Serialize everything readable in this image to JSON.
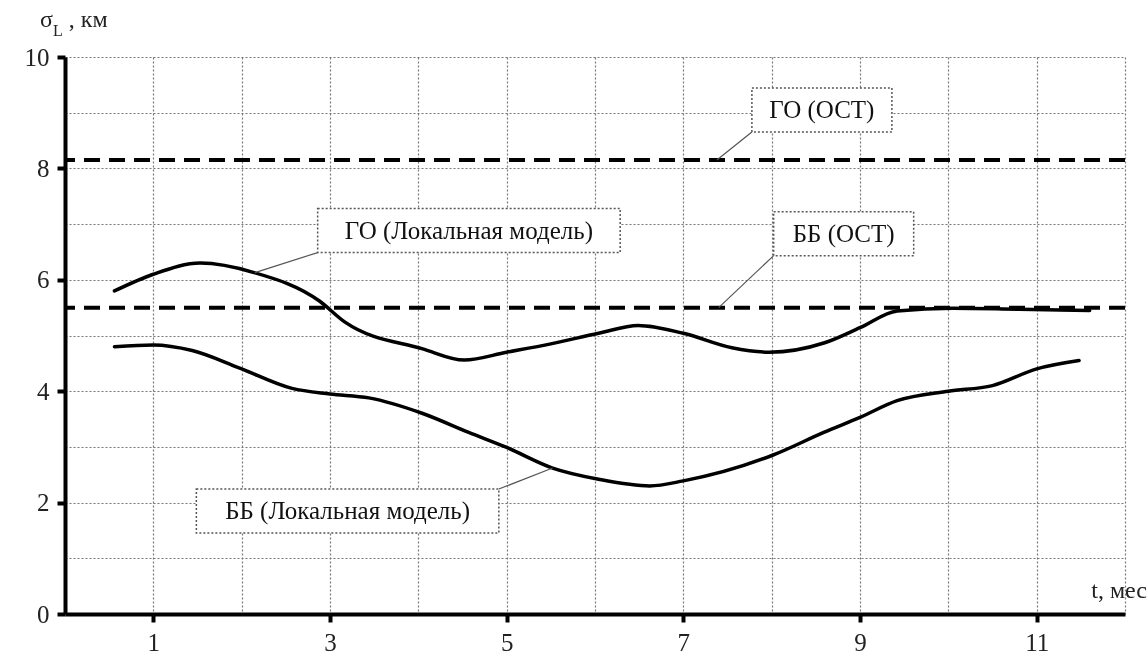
{
  "chart_data": {
    "type": "line",
    "ylabel": "σ$_{L}$ , км",
    "xlabel": "t, мес",
    "xlim": [
      0,
      12
    ],
    "ylim": [
      0,
      10
    ],
    "xticks": [
      {
        "value": 0,
        "label": null
      },
      1,
      {
        "value": 2,
        "label": null
      },
      3,
      {
        "value": 4,
        "label": null
      },
      5,
      {
        "value": 6,
        "label": null
      },
      7,
      {
        "value": 8,
        "label": null
      },
      9,
      {
        "value": 10,
        "label": null
      },
      11,
      {
        "value": 12,
        "label": null
      }
    ],
    "yticks": [
      0,
      {
        "value": 1,
        "label": null
      },
      2,
      {
        "value": 3,
        "label": null
      },
      4,
      {
        "value": 5,
        "label": null
      },
      6,
      {
        "value": 7,
        "label": null
      },
      8,
      {
        "value": 9,
        "label": null
      },
      10
    ],
    "grid": true,
    "line_style": "solid",
    "marker": "none",
    "series": [
      {
        "color": "#000000",
        "x": [
          0.56,
          1.0,
          1.53,
          2.14,
          2.88,
          3.17,
          4.05,
          4.52,
          5.0,
          5.5,
          6.04,
          6.49,
          7.0,
          7.55,
          7.97,
          8.6,
          9.0,
          9.42,
          10.05,
          10.8,
          11.6
        ],
        "values": [
          5.8,
          6.1,
          6.3,
          6.13,
          5.62,
          5.24,
          4.76,
          4.56,
          4.7,
          4.85,
          5.04,
          5.18,
          5.04,
          4.78,
          4.7,
          4.87,
          5.14,
          5.44,
          5.49,
          5.47,
          5.45
        ]
      },
      {
        "color": "#000000",
        "x": [
          0.56,
          1.0,
          1.44,
          1.97,
          2.57,
          3.0,
          3.44,
          4.05,
          4.57,
          5.0,
          5.52,
          6.04,
          6.62,
          7.0,
          8.01,
          8.59,
          9.0,
          9.42,
          10.0,
          10.5,
          11.0,
          11.48
        ],
        "values": [
          4.8,
          4.83,
          4.73,
          4.42,
          4.05,
          3.95,
          3.88,
          3.6,
          3.26,
          2.99,
          2.62,
          2.42,
          2.3,
          2.39,
          2.85,
          3.26,
          3.53,
          3.83,
          4.0,
          4.1,
          4.4,
          4.55
        ]
      }
    ],
    "ref_lines": [
      {
        "axis": "y",
        "value": 8.15,
        "color": "#000000",
        "line_style": "dashed"
      },
      {
        "axis": "y",
        "value": 5.5,
        "color": "#000000",
        "line_style": "dashed"
      }
    ],
    "annotations": [
      {
        "text": "ГО (ОСТ)",
        "x": 7.38,
        "y": 8.15
      },
      {
        "text": "ББ (ОСТ)",
        "x": 7.4,
        "y": 5.5
      },
      {
        "text": "ГО (Локальная модель)",
        "x": 2.15,
        "y": 6.13
      },
      {
        "text": "ББ (Локальная модель)",
        "x": 5.52,
        "y": 2.62
      }
    ]
  }
}
